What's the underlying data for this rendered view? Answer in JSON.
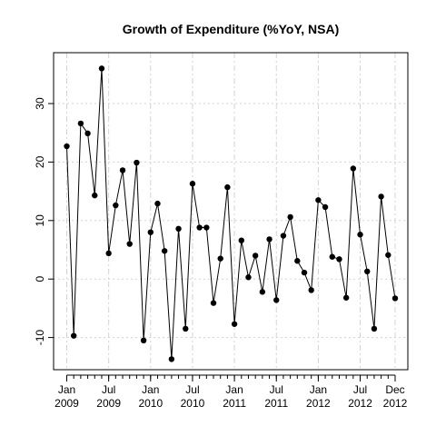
{
  "chart_data": {
    "type": "line",
    "title": "Growth of Expenditure (%YoY, NSA)",
    "xlabel": "",
    "ylabel": "",
    "x": [
      "2009-01",
      "2009-02",
      "2009-03",
      "2009-04",
      "2009-05",
      "2009-06",
      "2009-07",
      "2009-08",
      "2009-09",
      "2009-10",
      "2009-11",
      "2009-12",
      "2010-01",
      "2010-02",
      "2010-03",
      "2010-04",
      "2010-05",
      "2010-06",
      "2010-07",
      "2010-08",
      "2010-09",
      "2010-10",
      "2010-11",
      "2010-12",
      "2011-01",
      "2011-02",
      "2011-03",
      "2011-04",
      "2011-05",
      "2011-06",
      "2011-07",
      "2011-08",
      "2011-09",
      "2011-10",
      "2011-11",
      "2011-12",
      "2012-01",
      "2012-02",
      "2012-03",
      "2012-04",
      "2012-05",
      "2012-06",
      "2012-07",
      "2012-08",
      "2012-09",
      "2012-10",
      "2012-11",
      "2012-12"
    ],
    "values": [
      22.7,
      -9.7,
      26.6,
      24.9,
      14.3,
      36.0,
      4.4,
      12.6,
      18.6,
      6.0,
      19.9,
      -10.5,
      8.0,
      12.9,
      4.8,
      -13.7,
      8.6,
      -8.5,
      16.3,
      8.8,
      8.8,
      -4.1,
      3.5,
      15.7,
      -7.7,
      6.6,
      0.3,
      4.0,
      -2.2,
      6.8,
      -3.6,
      7.4,
      10.6,
      3.1,
      1.1,
      -1.9,
      13.5,
      12.3,
      3.8,
      3.4,
      -3.2,
      18.9,
      7.6,
      1.3,
      -8.5,
      14.1,
      4.1,
      -3.3
    ],
    "ylim": [
      -15.5,
      38.7
    ],
    "yticks": [
      -10,
      0,
      10,
      20,
      30
    ],
    "xtick_labels": [
      {
        "month": "Jan",
        "year": "2009",
        "index": 0
      },
      {
        "month": "Jul",
        "year": "2009",
        "index": 6
      },
      {
        "month": "Jan",
        "year": "2010",
        "index": 12
      },
      {
        "month": "Jul",
        "year": "2010",
        "index": 18
      },
      {
        "month": "Jan",
        "year": "2011",
        "index": 24
      },
      {
        "month": "Jul",
        "year": "2011",
        "index": 30
      },
      {
        "month": "Jan",
        "year": "2012",
        "index": 36
      },
      {
        "month": "Jul",
        "year": "2012",
        "index": 42
      },
      {
        "month": "Dec",
        "year": "2012",
        "index": 47
      }
    ],
    "grid": true,
    "line_color": "#000000",
    "marker_color": "#000000"
  }
}
